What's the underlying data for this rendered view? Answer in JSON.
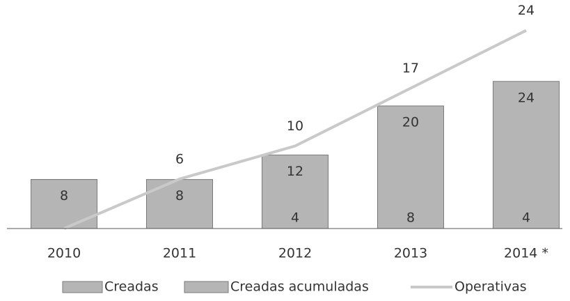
{
  "chart_data": {
    "type": "bar",
    "categories": [
      "2010",
      "2011",
      "2012",
      "2013",
      "2014 *"
    ],
    "series": [
      {
        "name": "Creadas",
        "color": "#b5b5b5",
        "values": [
          8,
          0,
          4,
          8,
          4
        ],
        "value_labels": [
          null,
          null,
          "4",
          "8",
          "4"
        ]
      },
      {
        "name": "Creadas acumuladas",
        "color": "#b5b5b5",
        "values": [
          8,
          8,
          12,
          20,
          24
        ]
      },
      {
        "name": "Operativas",
        "type": "line",
        "axis": "y2",
        "color": "#c9c9c9",
        "values": [
          0,
          6,
          10,
          17,
          24
        ],
        "value_labels": [
          null,
          "6",
          "10",
          "17",
          "24"
        ]
      }
    ],
    "ylim": [
      0,
      35
    ],
    "y2lim": [
      0,
      26
    ],
    "grid": false,
    "legend": "bottom"
  }
}
